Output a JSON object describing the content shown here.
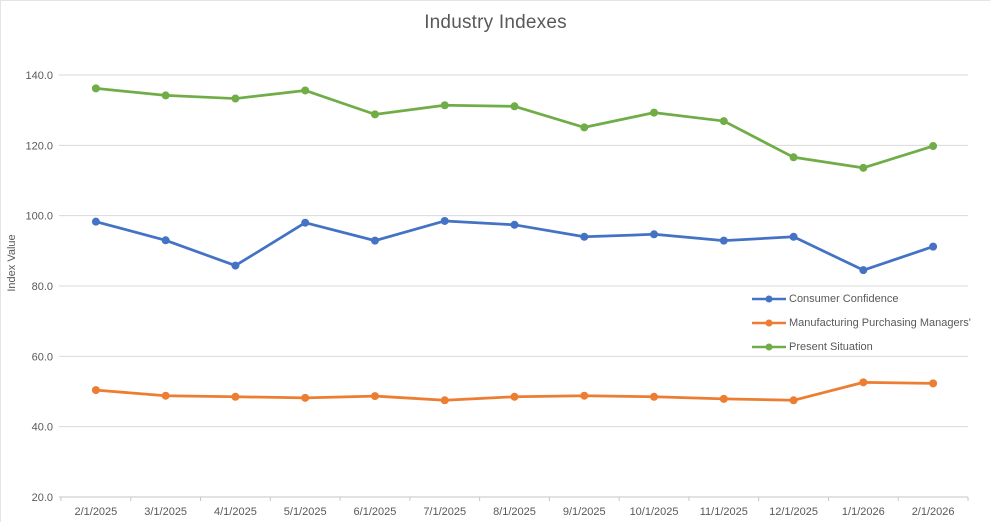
{
  "chart_data": {
    "type": "line",
    "title": "Industry Indexes",
    "xlabel": "",
    "ylabel": "Index Value",
    "categories": [
      "2/1/2025",
      "3/1/2025",
      "4/1/2025",
      "5/1/2025",
      "6/1/2025",
      "7/1/2025",
      "8/1/2025",
      "9/1/2025",
      "10/1/2025",
      "11/1/2025",
      "12/1/2025",
      "1/1/2026",
      "2/1/2026"
    ],
    "series": [
      {
        "name": "Consumer Confidence",
        "color": "#4472C4",
        "values": [
          98.3,
          93.0,
          85.8,
          98.0,
          92.9,
          98.5,
          97.4,
          94.0,
          94.7,
          92.9,
          94.0,
          84.5,
          91.2
        ]
      },
      {
        "name": "Manufacturing Purchasing Managers'",
        "color": "#ED7D31",
        "values": [
          50.4,
          48.8,
          48.5,
          48.2,
          48.7,
          47.5,
          48.5,
          48.8,
          48.5,
          47.9,
          47.5,
          52.6,
          52.3
        ]
      },
      {
        "name": "Present Situation",
        "color": "#70AD47",
        "values": [
          136.2,
          134.2,
          133.3,
          135.6,
          128.8,
          131.4,
          131.1,
          125.1,
          129.3,
          126.9,
          116.6,
          113.6,
          119.8
        ]
      }
    ],
    "ylim": [
      20,
      140
    ],
    "y_tick_step": 20,
    "y_tick_decimals": 1,
    "grid": true,
    "legend_position": "right-middle",
    "grid_color": "#D9D9D9",
    "axis_color": "#C6C6C6",
    "text_color": "#595959"
  }
}
